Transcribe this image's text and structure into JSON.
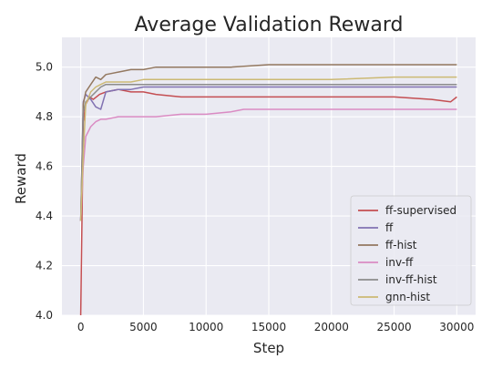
{
  "chart_data": {
    "type": "line",
    "title": "Average Validation Reward",
    "xlabel": "Step",
    "ylabel": "Reward",
    "xlim": [
      -1500,
      31500
    ],
    "ylim": [
      4.0,
      5.12
    ],
    "xticks": [
      0,
      5000,
      10000,
      15000,
      20000,
      25000,
      30000
    ],
    "yticks": [
      4.0,
      4.2,
      4.4,
      4.6,
      4.8,
      5.0
    ],
    "xtick_labels": [
      "0",
      "5000",
      "10000",
      "15000",
      "20000",
      "25000",
      "30000"
    ],
    "ytick_labels": [
      "4.0",
      "4.2",
      "4.4",
      "4.6",
      "4.8",
      "5.0"
    ],
    "grid": true,
    "background": "#eaeaf2",
    "legend_position": "lower-right",
    "series": [
      {
        "name": "ff-supervised",
        "color": "#c44e52",
        "x": [
          0,
          200,
          400,
          700,
          1000,
          1500,
          2000,
          3000,
          4000,
          5000,
          6000,
          8000,
          10000,
          12000,
          15000,
          18000,
          20000,
          22000,
          25000,
          28000,
          29500,
          30000
        ],
        "y": [
          4.0,
          4.78,
          4.85,
          4.88,
          4.87,
          4.89,
          4.9,
          4.91,
          4.9,
          4.9,
          4.89,
          4.88,
          4.88,
          4.88,
          4.88,
          4.88,
          4.88,
          4.88,
          4.88,
          4.87,
          4.86,
          4.88
        ]
      },
      {
        "name": "ff",
        "color": "#8172b2",
        "x": [
          0,
          200,
          400,
          800,
          1200,
          1600,
          2000,
          3000,
          4000,
          5000,
          6000,
          8000,
          10000,
          12000,
          15000,
          20000,
          25000,
          30000
        ],
        "y": [
          4.38,
          4.86,
          4.89,
          4.87,
          4.84,
          4.83,
          4.9,
          4.91,
          4.91,
          4.92,
          4.92,
          4.92,
          4.92,
          4.92,
          4.92,
          4.92,
          4.92,
          4.92
        ]
      },
      {
        "name": "ff-hist",
        "color": "#937860",
        "x": [
          0,
          200,
          400,
          800,
          1200,
          1600,
          2000,
          3000,
          4000,
          5000,
          6000,
          8000,
          10000,
          12000,
          15000,
          20000,
          25000,
          30000
        ],
        "y": [
          4.38,
          4.85,
          4.9,
          4.93,
          4.96,
          4.95,
          4.97,
          4.98,
          4.99,
          4.99,
          5.0,
          5.0,
          5.0,
          5.0,
          5.01,
          5.01,
          5.01,
          5.01
        ]
      },
      {
        "name": "inv-ff",
        "color": "#da8bc3",
        "x": [
          0,
          200,
          400,
          800,
          1200,
          1600,
          2000,
          3000,
          4000,
          5000,
          6000,
          8000,
          10000,
          12000,
          13000,
          15000,
          18000,
          20000,
          25000,
          30000
        ],
        "y": [
          4.38,
          4.6,
          4.72,
          4.76,
          4.78,
          4.79,
          4.79,
          4.8,
          4.8,
          4.8,
          4.8,
          4.81,
          4.81,
          4.82,
          4.83,
          4.83,
          4.83,
          4.83,
          4.83,
          4.83
        ]
      },
      {
        "name": "inv-ff-hist",
        "color": "#8c8c8c",
        "x": [
          0,
          200,
          400,
          800,
          1200,
          1600,
          2000,
          3000,
          4000,
          5000,
          6000,
          8000,
          10000,
          12000,
          15000,
          20000,
          25000,
          30000
        ],
        "y": [
          4.38,
          4.82,
          4.86,
          4.88,
          4.9,
          4.92,
          4.93,
          4.93,
          4.93,
          4.93,
          4.93,
          4.93,
          4.93,
          4.93,
          4.93,
          4.93,
          4.93,
          4.93
        ]
      },
      {
        "name": "gnn-hist",
        "color": "#ccb974",
        "x": [
          0,
          200,
          400,
          800,
          1200,
          1600,
          2000,
          3000,
          4000,
          5000,
          6000,
          8000,
          10000,
          12000,
          15000,
          20000,
          25000,
          30000
        ],
        "y": [
          4.38,
          4.65,
          4.85,
          4.9,
          4.92,
          4.93,
          4.94,
          4.94,
          4.94,
          4.95,
          4.95,
          4.95,
          4.95,
          4.95,
          4.95,
          4.95,
          4.96,
          4.96
        ]
      }
    ]
  }
}
